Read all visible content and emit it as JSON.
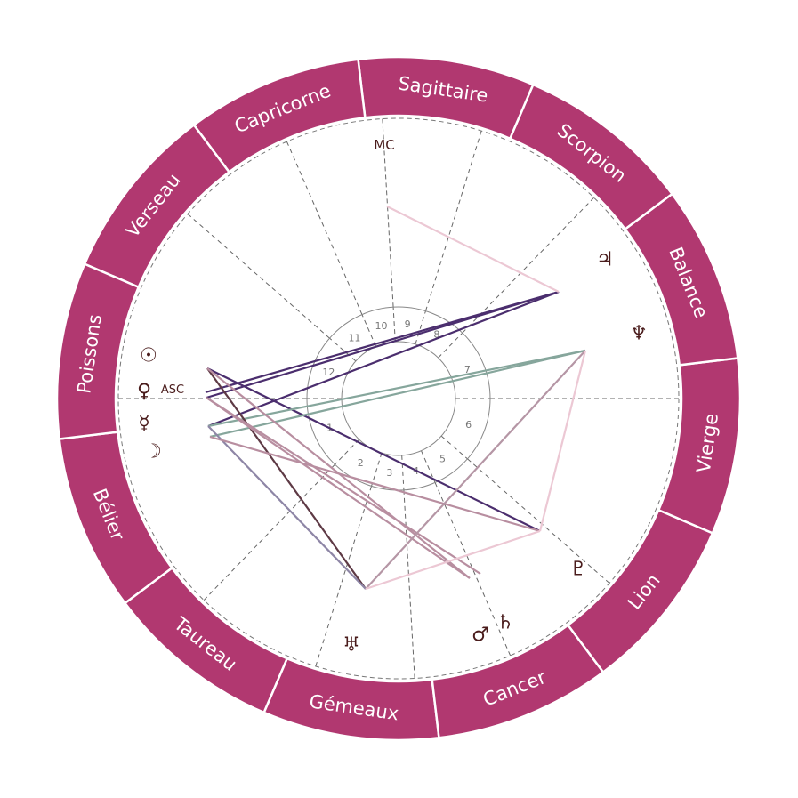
{
  "signs": [
    "Bélier",
    "Taureau",
    "Gémeaux",
    "Cancer",
    "Lion",
    "Vierge",
    "Balance",
    "Scorpion",
    "Sagittaire",
    "Capricorne",
    "Verseau",
    "Poissons"
  ],
  "houses": [
    "1",
    "2",
    "3",
    "4",
    "5",
    "6",
    "7",
    "8",
    "9",
    "10",
    "11",
    "12"
  ],
  "angles": {
    "asc": "ASC",
    "mc": "MC"
  },
  "planets": [
    {
      "name": "sun",
      "glyph": "☉"
    },
    {
      "name": "venus",
      "glyph": "♀"
    },
    {
      "name": "mercury",
      "glyph": "☿"
    },
    {
      "name": "moon",
      "glyph": "☽"
    },
    {
      "name": "jupiter",
      "glyph": "♃"
    },
    {
      "name": "neptune",
      "glyph": "♆"
    },
    {
      "name": "pluto",
      "glyph": "♇"
    },
    {
      "name": "mars",
      "glyph": "♂"
    },
    {
      "name": "saturn",
      "glyph": "♄"
    },
    {
      "name": "uranus",
      "glyph": "♅"
    }
  ],
  "aspects": [
    {
      "from": "asc",
      "to": "jupiter",
      "color": "#4b2e6e"
    },
    {
      "from": "venus",
      "to": "jupiter",
      "color": "#4b2e6e"
    },
    {
      "from": "mercury",
      "to": "jupiter",
      "color": "#4b2e6e"
    },
    {
      "from": "sun",
      "to": "pluto",
      "color": "#4b2e6e"
    },
    {
      "from": "mercury",
      "to": "neptune",
      "color": "#86a69c"
    },
    {
      "from": "moon",
      "to": "neptune",
      "color": "#86a69c"
    },
    {
      "from": "sun",
      "to": "uranus",
      "color": "#5e3a45"
    },
    {
      "from": "mercury",
      "to": "uranus",
      "color": "#8e86a6"
    },
    {
      "from": "sun",
      "to": "mars",
      "color": "#b88ea0"
    },
    {
      "from": "venus",
      "to": "mars",
      "color": "#b88ea0"
    },
    {
      "from": "venus",
      "to": "saturn",
      "color": "#b88ea0"
    },
    {
      "from": "moon",
      "to": "pluto",
      "color": "#b88ea0"
    },
    {
      "from": "uranus",
      "to": "neptune",
      "color": "#b596a5"
    },
    {
      "from": "uranus",
      "to": "pluto",
      "color": "#ecc8d4"
    },
    {
      "from": "pluto",
      "to": "neptune",
      "color": "#ecc8d4"
    },
    {
      "from": "mc",
      "to": "jupiter",
      "color": "#ecc8d4"
    }
  ],
  "colors": {
    "ring": "#b13870",
    "glyph": "#4a1c1c",
    "house_line": "#777777"
  }
}
